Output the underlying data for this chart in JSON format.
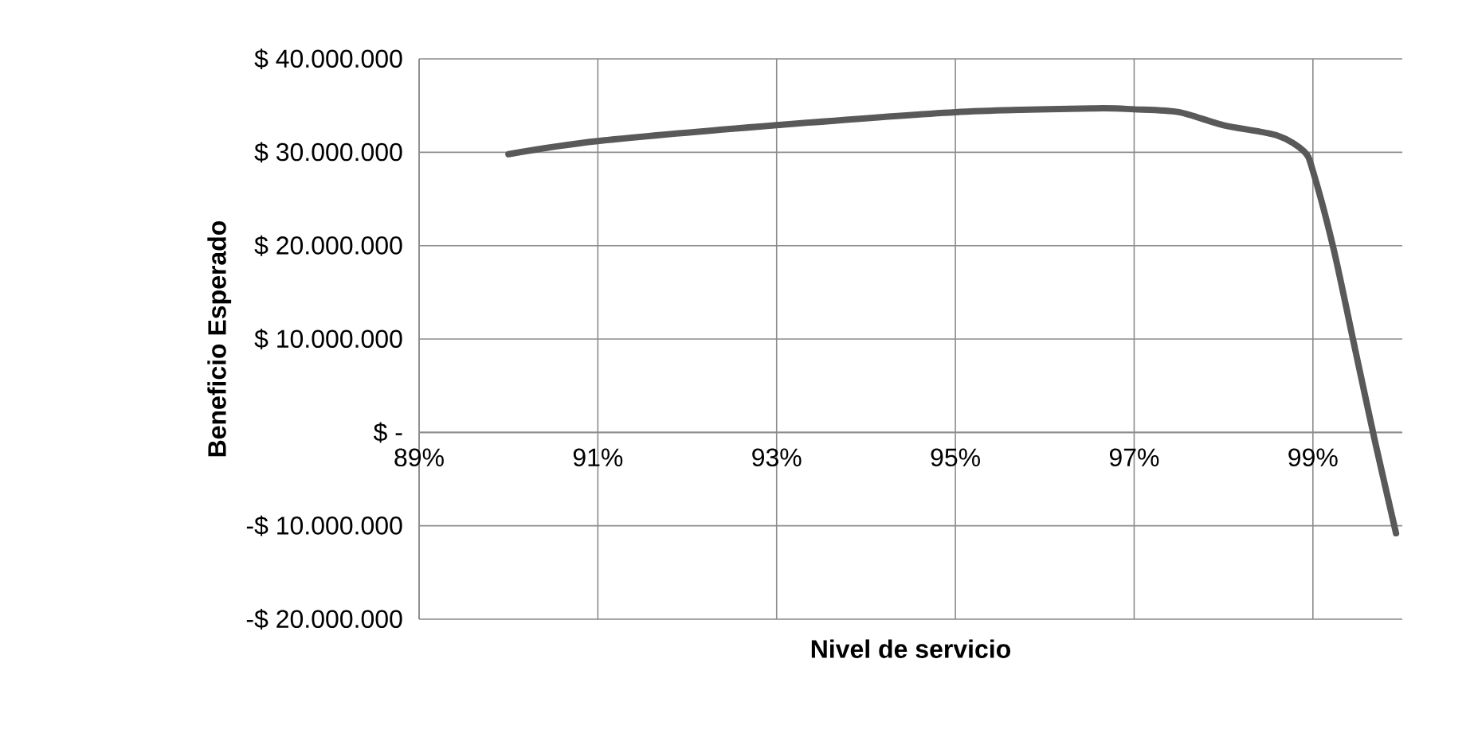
{
  "chart_data": {
    "type": "line",
    "xlabel": "Nivel de servicio",
    "ylabel": "Beneficio Esperado",
    "x": [
      90,
      91,
      93,
      95,
      96.55,
      97,
      97.5,
      98,
      98.6,
      98.9,
      99,
      99.23,
      99.47,
      99.7,
      99.93
    ],
    "series": [
      {
        "color": "#595959",
        "values": [
          29800000,
          31200000,
          32900000,
          34300000,
          34700000,
          34600000,
          34300000,
          32900000,
          31800000,
          30100000,
          28000000,
          19700000,
          9000000,
          -1200000,
          -10800000
        ]
      }
    ],
    "xlim": [
      89,
      100
    ],
    "xticks": [
      {
        "value": 89,
        "label": "89%"
      },
      {
        "value": 91,
        "label": "91%"
      },
      {
        "value": 93,
        "label": "93%"
      },
      {
        "value": 95,
        "label": "95%"
      },
      {
        "value": 97,
        "label": "97%"
      },
      {
        "value": 99,
        "label": "99%"
      }
    ],
    "ylim": [
      -20000000,
      40000000
    ],
    "yticks": [
      {
        "value": -20000000,
        "label": "-$ 20.000.000"
      },
      {
        "value": -10000000,
        "label": "-$ 10.000.000"
      },
      {
        "value": 0,
        "label": "$ -"
      },
      {
        "value": 10000000,
        "label": "$ 10.000.000"
      },
      {
        "value": 20000000,
        "label": "$ 20.000.000"
      },
      {
        "value": 30000000,
        "label": "$ 30.000.000"
      },
      {
        "value": 40000000,
        "label": "$ 40.000.000"
      }
    ],
    "grid": true,
    "marker": "none",
    "line_style": "solid"
  }
}
